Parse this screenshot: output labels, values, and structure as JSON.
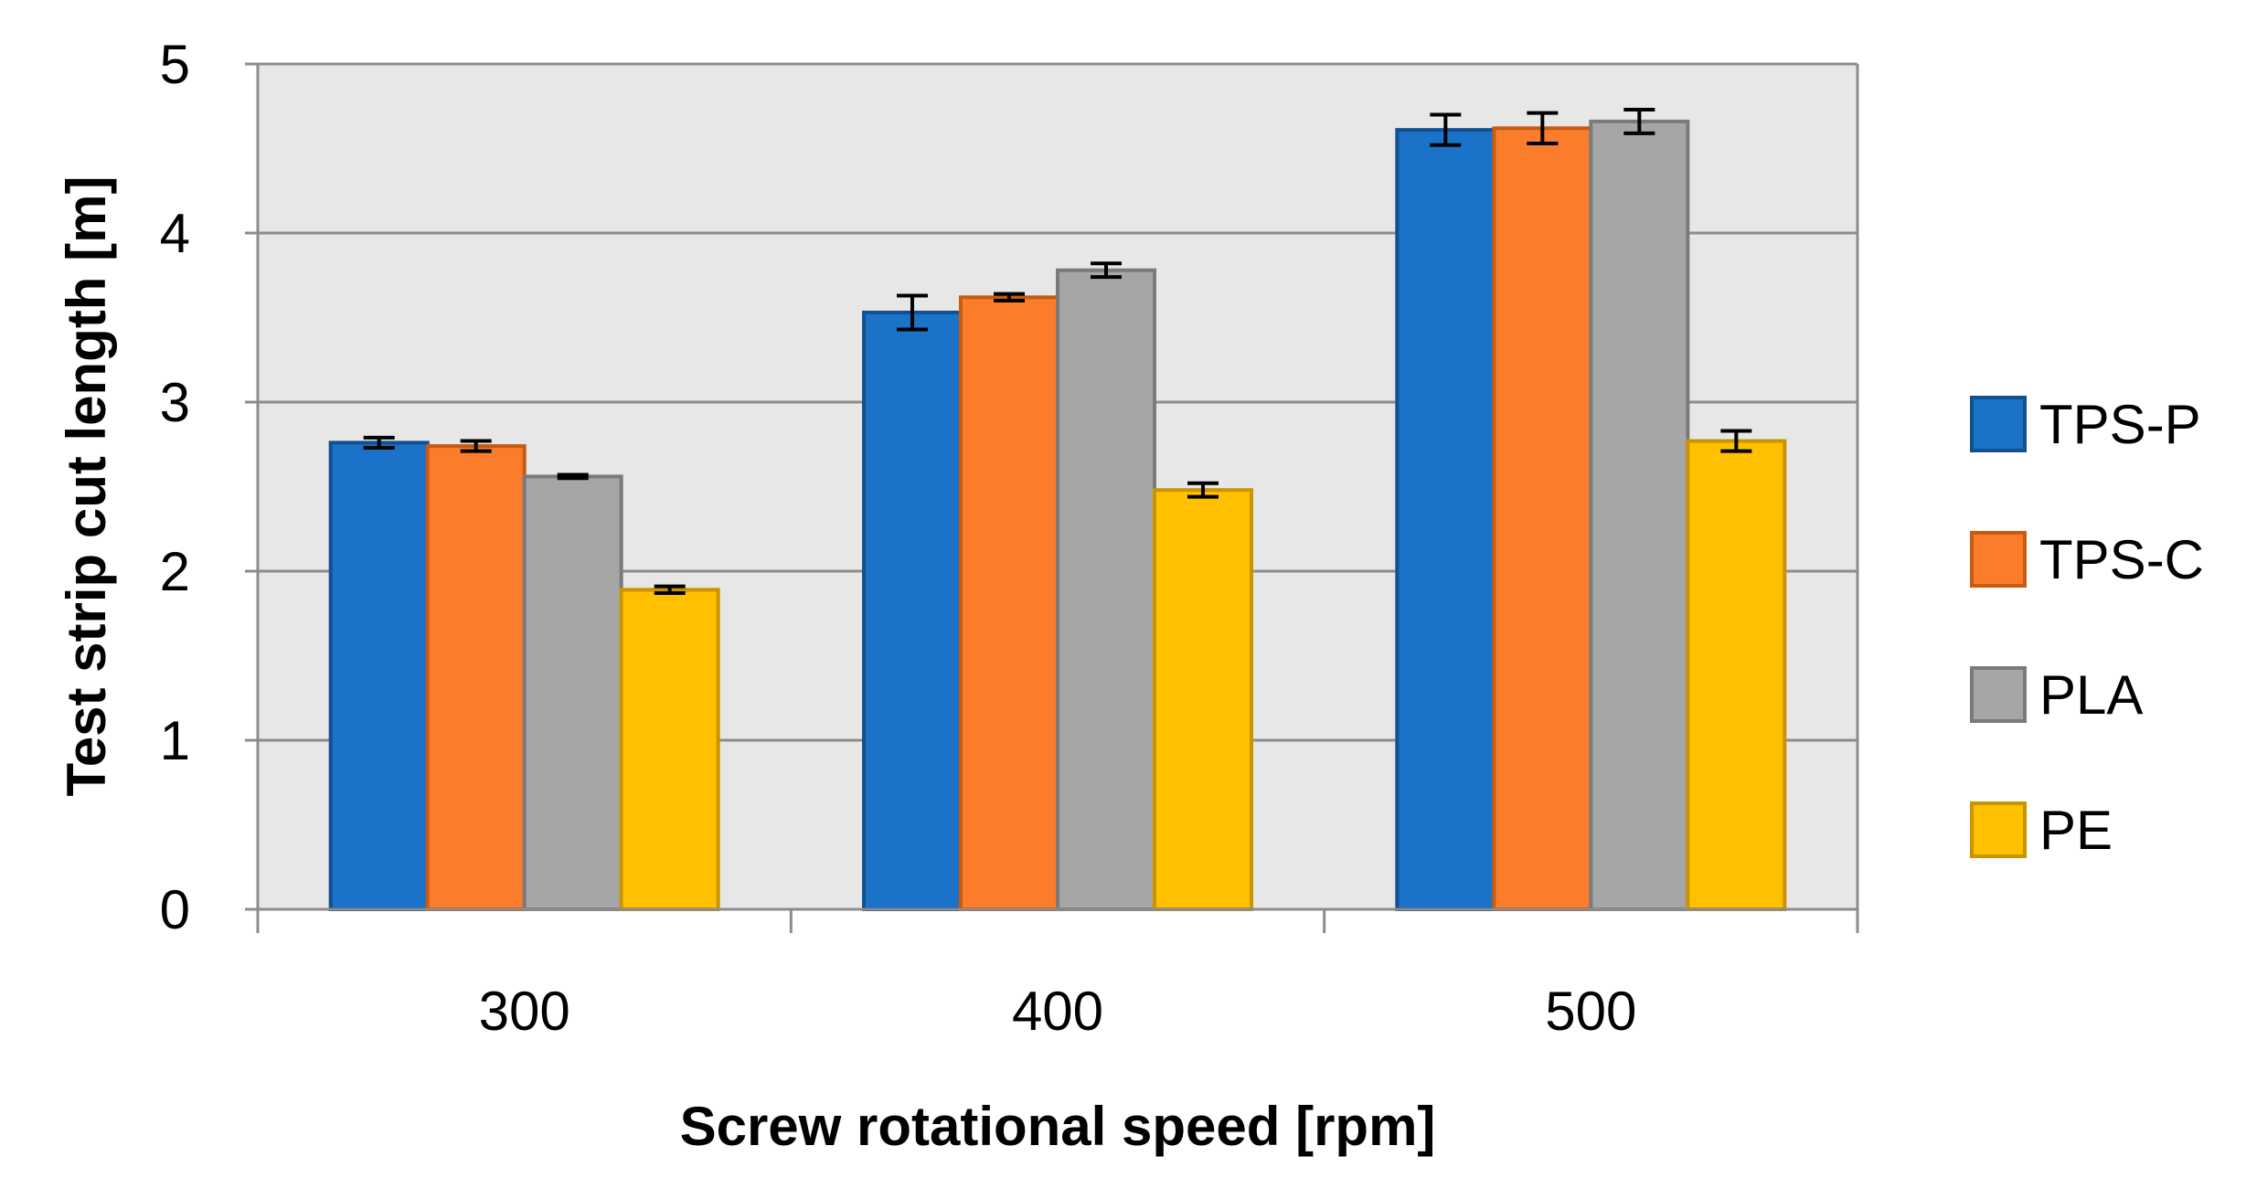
{
  "chart_data": {
    "type": "bar",
    "title": "",
    "xlabel": "Screw rotational speed [rpm]",
    "ylabel": "Test strip cut length [m]",
    "ylim": [
      0,
      5
    ],
    "yticks": [
      "0",
      "1",
      "2",
      "3",
      "4",
      "5"
    ],
    "categories": [
      "300",
      "400",
      "500"
    ],
    "grid": true,
    "legend_position": "right",
    "series": [
      {
        "name": "TPS-P",
        "color": "#1a73c8",
        "stroke": "#13508f",
        "values": [
          2.76,
          3.53,
          4.61
        ],
        "errors": [
          0.03,
          0.1,
          0.09
        ]
      },
      {
        "name": "TPS-C",
        "color": "#fb7d2b",
        "stroke": "#c85a12",
        "values": [
          2.74,
          3.62,
          4.62
        ],
        "errors": [
          0.03,
          0.02,
          0.09
        ]
      },
      {
        "name": "PLA",
        "color": "#a6a6a6",
        "stroke": "#7a7a7a",
        "values": [
          2.56,
          3.78,
          4.66
        ],
        "errors": [
          0.01,
          0.04,
          0.07
        ]
      },
      {
        "name": "PE",
        "color": "#ffc000",
        "stroke": "#c99400",
        "values": [
          1.89,
          2.48,
          2.77
        ],
        "errors": [
          0.02,
          0.04,
          0.06
        ]
      }
    ],
    "plot_background": "#e7e7e7",
    "grid_color": "#8c8c8c"
  }
}
